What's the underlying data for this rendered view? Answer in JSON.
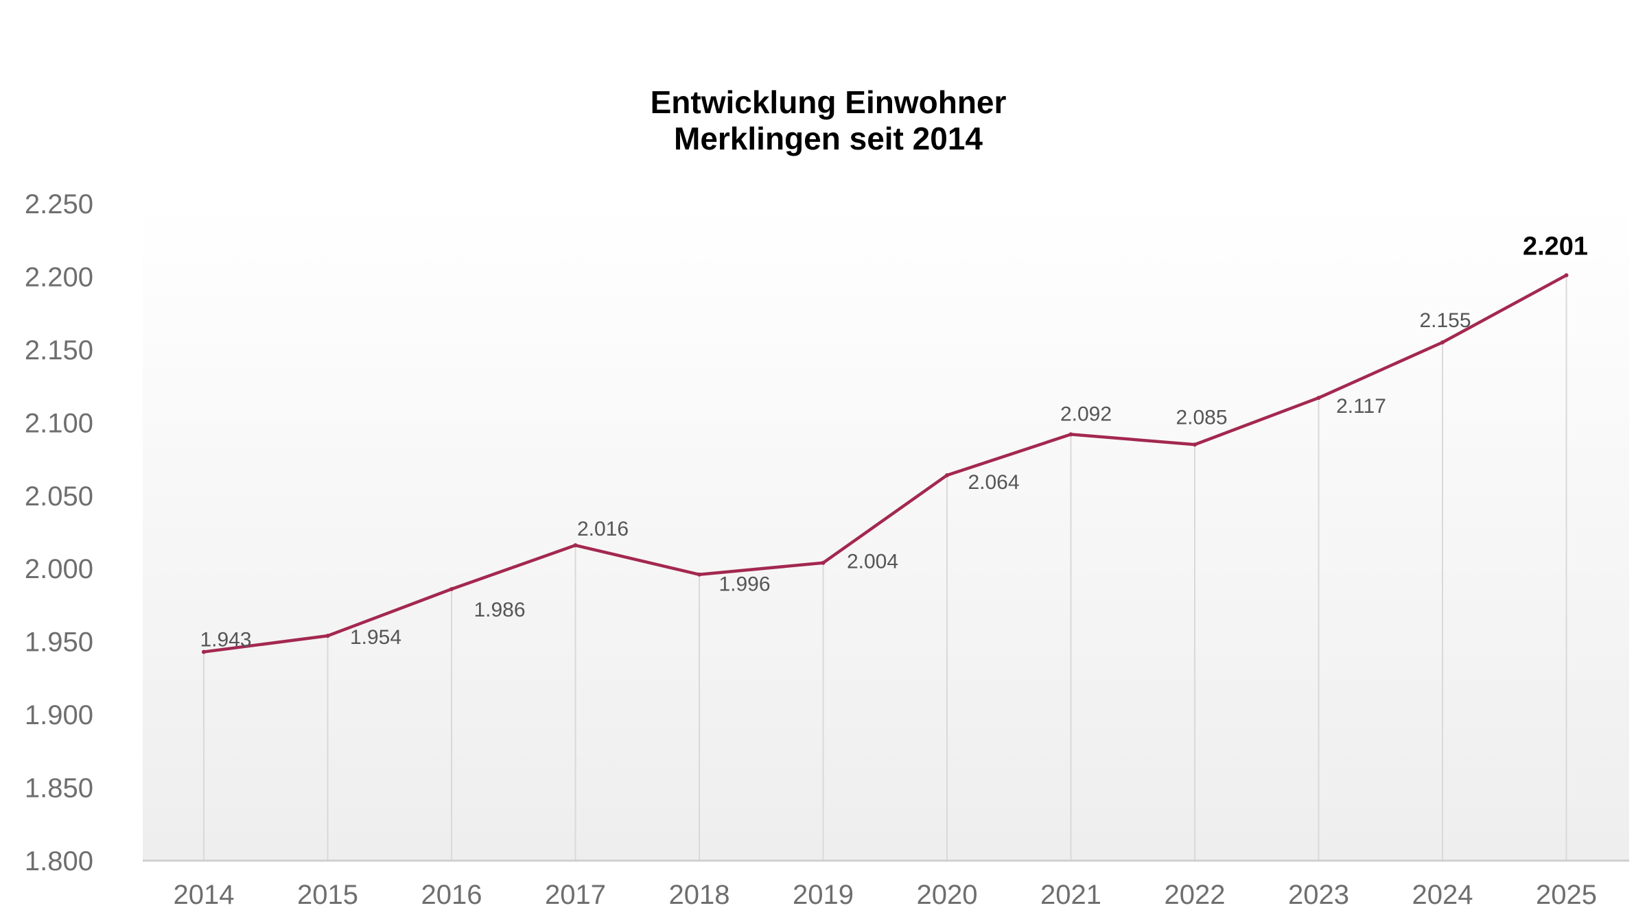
{
  "chart_data": {
    "type": "line",
    "title_lines": [
      "Entwicklung Einwohner",
      "Merklingen seit 2014"
    ],
    "categories": [
      "2014",
      "2015",
      "2016",
      "2017",
      "2018",
      "2019",
      "2020",
      "2021",
      "2022",
      "2023",
      "2024",
      "2025"
    ],
    "series": [
      {
        "name": "Einwohner",
        "values": [
          1943,
          1954,
          1986,
          2016,
          1996,
          2004,
          2064,
          2092,
          2085,
          2117,
          2155,
          2201
        ],
        "value_labels": [
          "1.943",
          "1.954",
          "1.986",
          "2.016",
          "1.996",
          "2.004",
          "2.064",
          "2.092",
          "2.085",
          "2.117",
          "2.155",
          "2.201"
        ],
        "color": "#a3284f"
      }
    ],
    "ylim": [
      1800,
      2250
    ],
    "yticks": [
      1800,
      1850,
      1900,
      1950,
      2000,
      2050,
      2100,
      2150,
      2200,
      2250
    ],
    "ytick_labels": [
      "1.800",
      "1.850",
      "1.900",
      "1.950",
      "2.000",
      "2.050",
      "2.100",
      "2.150",
      "2.200",
      "2.250"
    ],
    "xlabel": "",
    "ylabel": "",
    "grid": "vertical",
    "legend": "none",
    "highlight_last_label": true
  }
}
